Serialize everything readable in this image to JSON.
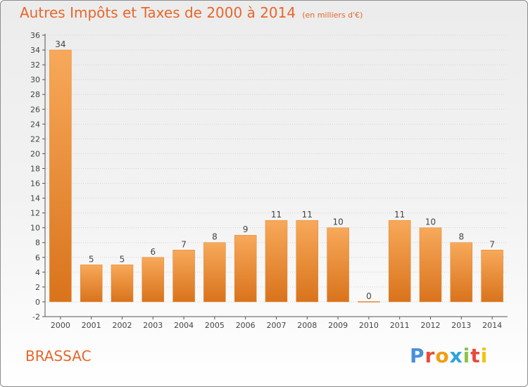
{
  "header": {
    "title": "Autres Impôts et Taxes de 2000 à 2014",
    "unit": "(en milliers d'€)"
  },
  "commune": "BRASSAC",
  "logo": "Proxiti",
  "colors": {
    "bar": "#f0923f",
    "bar_dark": "#d9731c",
    "text": "#e8662a",
    "grid": "#cfcfcf"
  },
  "chart_data": {
    "type": "bar",
    "title": "Autres Impôts et Taxes de 2000 à 2014",
    "subtitle": "(en milliers d'€)",
    "categories": [
      "2000",
      "2001",
      "2002",
      "2003",
      "2004",
      "2005",
      "2006",
      "2007",
      "2008",
      "2009",
      "2010",
      "2011",
      "2012",
      "2013",
      "2014"
    ],
    "values": [
      34,
      5,
      5,
      6,
      7,
      8,
      9,
      11,
      11,
      10,
      0,
      11,
      10,
      8,
      7
    ],
    "ylim": [
      -2,
      36
    ],
    "yticks": [
      -2,
      0,
      2,
      4,
      6,
      8,
      10,
      12,
      14,
      16,
      18,
      20,
      22,
      24,
      26,
      28,
      30,
      32,
      34,
      36
    ],
    "grid": true,
    "xlabel": "",
    "ylabel": ""
  }
}
